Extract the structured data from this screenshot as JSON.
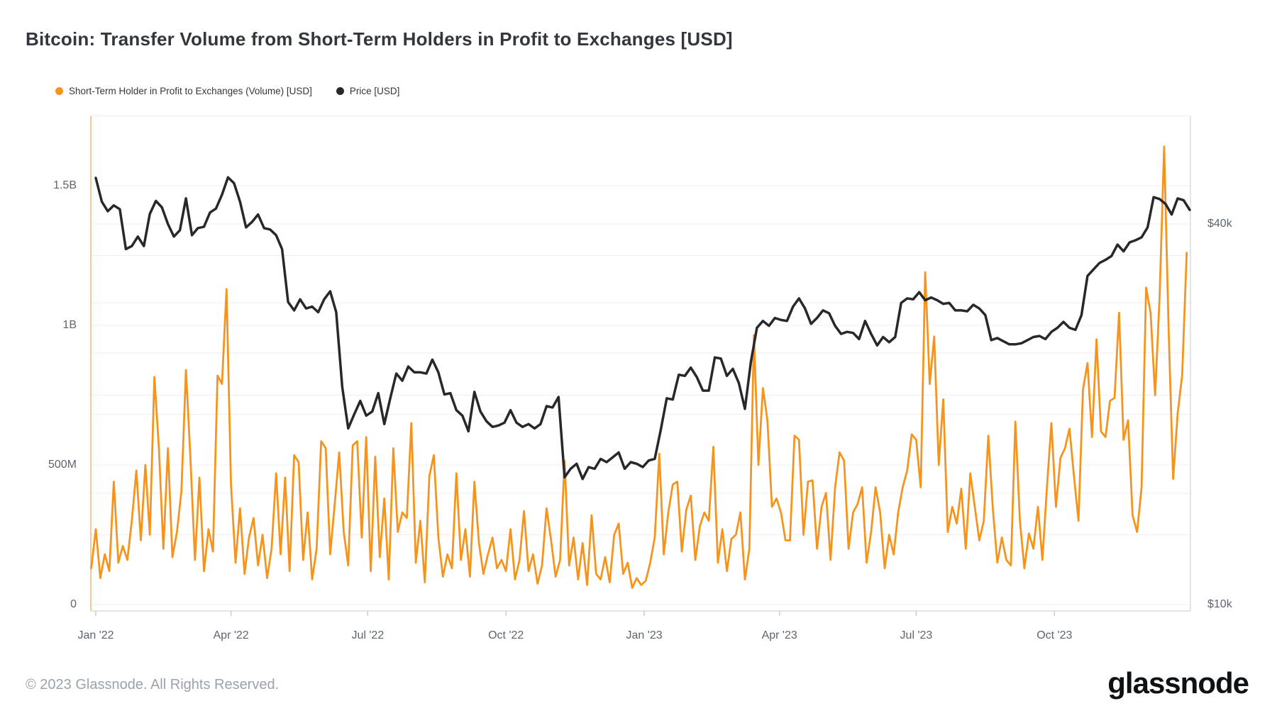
{
  "header": {
    "title": "Bitcoin: Transfer Volume from Short-Term Holders in Profit to Exchanges [USD]"
  },
  "legend": {
    "items": [
      {
        "label": "Short-Term Holder in Profit to Exchanges (Volume) [USD]",
        "color": "#F7931A"
      },
      {
        "label": "Price [USD]",
        "color": "#26282B"
      }
    ]
  },
  "footer": {
    "copyright": "© 2023 Glassnode. All Rights Reserved.",
    "brand": "glassnode"
  },
  "chart_data": {
    "type": "line",
    "title": "Bitcoin: Transfer Volume from Short-Term Holders in Profit to Exchanges [USD]",
    "x_range": {
      "start": "2022-01-01",
      "end": "2023-12-31",
      "unit": "day"
    },
    "x_tick_labels": [
      {
        "label": "Jan '22",
        "day": 0
      },
      {
        "label": "Apr '22",
        "day": 90
      },
      {
        "label": "Jul '22",
        "day": 181
      },
      {
        "label": "Oct '22",
        "day": 273
      },
      {
        "label": "Jan '23",
        "day": 365
      },
      {
        "label": "Apr '23",
        "day": 455
      },
      {
        "label": "Jul '23",
        "day": 546
      },
      {
        "label": "Oct '23",
        "day": 638
      }
    ],
    "axes": {
      "left_volume": {
        "unit": "USD",
        "tick_labels": [
          {
            "label": "0",
            "value_musd": 0
          },
          {
            "label": "500M",
            "value_musd": 500
          },
          {
            "label": "1B",
            "value_musd": 1000
          },
          {
            "label": "1.5B",
            "value_musd": 1500
          }
        ],
        "gridline_values_musd": [
          250,
          500,
          750,
          1000,
          1250,
          1500,
          1750
        ],
        "range_musd": [
          0,
          1750
        ]
      },
      "right_price": {
        "unit": "USD",
        "scale": "log",
        "tick_labels": [
          {
            "label": "$10k",
            "value_kusd": 10
          },
          {
            "label": "$40k",
            "value_kusd": 40
          }
        ],
        "gridline_values_kusd": [
          15,
          20,
          25,
          30,
          40
        ],
        "range_kusd": [
          10,
          50
        ]
      }
    },
    "series": [
      {
        "name": "Short-Term Holder in Profit to Exchanges (Volume) [USD]",
        "color": "#F7931A",
        "axis": "left_volume",
        "unit": "million USD",
        "day_start": -3,
        "day_step": 3,
        "values": [
          130,
          270,
          95,
          180,
          120,
          440,
          150,
          210,
          160,
          300,
          480,
          230,
          500,
          250,
          815,
          560,
          200,
          560,
          170,
          260,
          405,
          840,
          525,
          160,
          455,
          120,
          270,
          190,
          820,
          790,
          1130,
          430,
          150,
          345,
          110,
          240,
          310,
          140,
          250,
          95,
          200,
          470,
          180,
          455,
          120,
          535,
          510,
          160,
          330,
          90,
          200,
          585,
          560,
          180,
          360,
          545,
          260,
          140,
          570,
          585,
          240,
          600,
          120,
          530,
          170,
          380,
          90,
          560,
          260,
          330,
          310,
          650,
          150,
          300,
          80,
          460,
          535,
          240,
          100,
          180,
          130,
          470,
          160,
          270,
          100,
          440,
          220,
          110,
          180,
          240,
          130,
          160,
          120,
          270,
          90,
          160,
          335,
          120,
          180,
          75,
          140,
          345,
          230,
          100,
          160,
          515,
          140,
          240,
          90,
          220,
          70,
          320,
          110,
          90,
          170,
          80,
          250,
          290,
          110,
          150,
          60,
          95,
          70,
          85,
          150,
          240,
          540,
          180,
          330,
          430,
          440,
          190,
          340,
          390,
          160,
          280,
          330,
          300,
          565,
          150,
          270,
          120,
          235,
          250,
          330,
          90,
          200,
          965,
          500,
          775,
          660,
          350,
          380,
          330,
          230,
          230,
          605,
          590,
          250,
          440,
          445,
          200,
          350,
          400,
          160,
          420,
          545,
          515,
          200,
          330,
          360,
          420,
          150,
          260,
          420,
          330,
          130,
          250,
          180,
          330,
          420,
          480,
          610,
          590,
          420,
          1190,
          790,
          960,
          500,
          735,
          260,
          350,
          290,
          415,
          200,
          470,
          350,
          230,
          300,
          605,
          345,
          150,
          240,
          160,
          140,
          655,
          300,
          130,
          255,
          200,
          350,
          160,
          420,
          650,
          350,
          525,
          560,
          630,
          460,
          300,
          770,
          865,
          600,
          950,
          620,
          600,
          730,
          740,
          1045,
          590,
          660,
          320,
          260,
          420,
          1135,
          1045,
          750,
          1100,
          1640,
          980,
          450,
          685,
          820,
          1260
        ]
      },
      {
        "name": "Price [USD]",
        "color": "#26282B",
        "axis": "right_price",
        "unit": "thousand USD",
        "day_start": 0,
        "day_step": 4,
        "values": [
          47.3,
          43.4,
          41.9,
          42.8,
          42.2,
          36.5,
          36.9,
          38.2,
          36.9,
          41.5,
          43.5,
          42.5,
          40.0,
          38.2,
          39.1,
          43.9,
          38.4,
          39.4,
          39.6,
          41.7,
          42.3,
          44.5,
          47.4,
          46.4,
          43.4,
          39.5,
          40.3,
          41.4,
          39.4,
          39.2,
          38.4,
          36.5,
          30.1,
          29.2,
          30.4,
          29.4,
          29.6,
          29.0,
          30.4,
          31.3,
          29.0,
          22.1,
          19.0,
          20.0,
          21.0,
          19.9,
          20.2,
          21.6,
          19.3,
          21.2,
          23.2,
          22.6,
          23.8,
          23.3,
          23.3,
          23.2,
          24.4,
          23.3,
          21.5,
          21.6,
          20.3,
          19.9,
          18.8,
          21.7,
          20.2,
          19.5,
          19.1,
          19.2,
          19.4,
          20.3,
          19.4,
          19.1,
          19.3,
          19.0,
          19.3,
          20.6,
          20.5,
          21.3,
          15.9,
          16.4,
          16.7,
          15.8,
          16.5,
          16.4,
          17.0,
          16.8,
          17.1,
          17.4,
          16.4,
          16.8,
          16.7,
          16.5,
          16.9,
          17.0,
          18.9,
          21.2,
          21.1,
          23.1,
          23.0,
          23.7,
          22.9,
          21.8,
          21.8,
          24.6,
          24.5,
          23.0,
          23.6,
          22.4,
          20.4,
          24.2,
          27.4,
          28.1,
          27.6,
          28.4,
          28.2,
          28.1,
          29.6,
          30.5,
          29.4,
          27.8,
          28.4,
          29.2,
          28.9,
          27.6,
          26.8,
          27.0,
          26.9,
          26.3,
          28.1,
          26.8,
          25.7,
          26.5,
          26.0,
          26.5,
          30.0,
          30.5,
          30.4,
          31.2,
          30.3,
          30.6,
          30.3,
          29.9,
          30.0,
          29.2,
          29.2,
          29.1,
          29.8,
          29.4,
          28.7,
          26.2,
          26.4,
          26.1,
          25.8,
          25.8,
          25.9,
          26.2,
          26.5,
          26.6,
          26.3,
          27.0,
          27.4,
          28.0,
          27.4,
          27.2,
          28.7,
          33.1,
          33.9,
          34.7,
          35.1,
          35.6,
          37.1,
          36.2,
          37.4,
          37.7,
          38.1,
          39.5,
          44.1,
          43.8,
          43.0,
          41.4,
          43.9,
          43.6,
          42.1
        ]
      }
    ],
    "legend_position": "top-left",
    "grid": true,
    "colors": {
      "volume": "#F7931A",
      "price": "#26282B",
      "gridline": "#eeeff1",
      "axis_border": "#d9dce0",
      "left_axis_line": "#f9c98c"
    }
  }
}
